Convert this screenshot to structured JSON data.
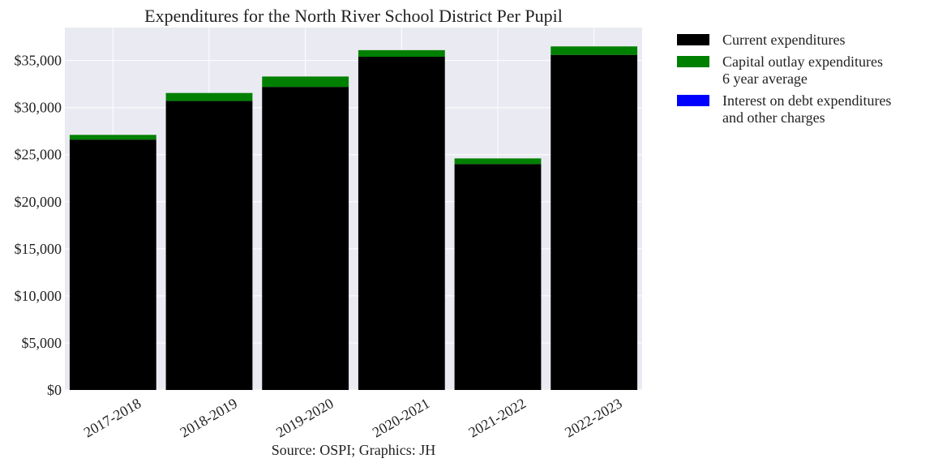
{
  "chart_data": {
    "type": "bar",
    "stacked": true,
    "title": "Expenditures for the North River School District Per Pupil",
    "caption": "Source: OSPI; Graphics: JH",
    "xlabel": "",
    "ylabel": "",
    "categories": [
      "2017-2018",
      "2018-2019",
      "2019-2020",
      "2020-2021",
      "2021-2022",
      "2022-2023"
    ],
    "series": [
      {
        "name": "Current expenditures",
        "color": "#000000",
        "values": [
          26600,
          30700,
          32200,
          35400,
          24000,
          35600
        ]
      },
      {
        "name": "Capital outlay expenditures\n6 year average",
        "color": "#008000",
        "values": [
          500,
          850,
          1100,
          700,
          600,
          900
        ]
      },
      {
        "name": "Interest on debt expenditures\nand other charges",
        "color": "#0000ff",
        "values": [
          0,
          0,
          0,
          0,
          0,
          0
        ]
      }
    ],
    "ylim": [
      0,
      38500
    ],
    "yticks": [
      0,
      5000,
      10000,
      15000,
      20000,
      25000,
      30000,
      35000
    ],
    "ytick_labels": [
      "$0",
      "$5,000",
      "$10,000",
      "$15,000",
      "$20,000",
      "$25,000",
      "$30,000",
      "$35,000"
    ],
    "grid": true,
    "plot_background": "#eaeaf2",
    "legend_position": "outside upper right"
  }
}
